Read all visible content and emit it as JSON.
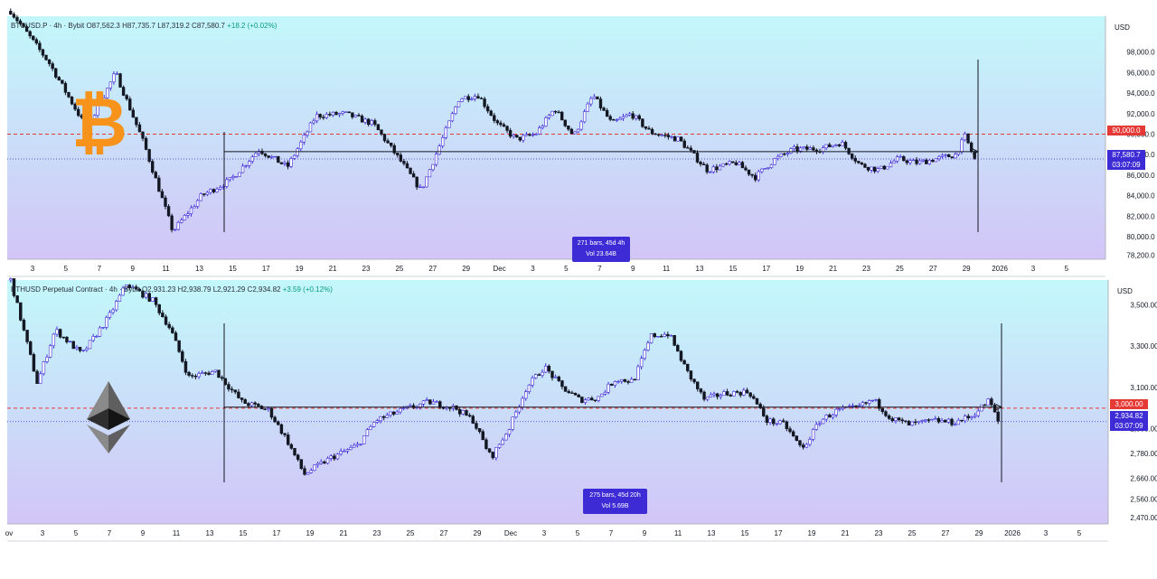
{
  "colors": {
    "up": "#3d2bd6",
    "down": "#131722",
    "ref_line": "#e53935",
    "red_tag": "#e53935",
    "blue_tag": "#3d2bd6",
    "bitcoin_orange": "#f7931a"
  },
  "chart_data": [
    {
      "type": "candlestick",
      "symbol_legend": "BTCUSD.P · 4h · Bybit",
      "ohlc": {
        "o_label": "O87,562.3",
        "h_label": "H87,735.7",
        "l_label": "L87,319.2",
        "c_label": "C87,580.7",
        "change_label": "+18.2 (+0.02%)"
      },
      "currency": "USD",
      "ylim": [
        77800,
        101500
      ],
      "y_ticks": [
        78200,
        80000,
        82000,
        84000,
        86000,
        88000,
        90000,
        92000,
        94000,
        96000,
        98000
      ],
      "y_tick_labels": [
        "78,200.0",
        "80,000.0",
        "82,000.0",
        "84,000.0",
        "86,000.0",
        "88,000.0",
        "90,000.0",
        "92,000.0",
        "94,000.0",
        "96,000.0",
        "98,000.0"
      ],
      "x_tick_labels": [
        "3",
        "5",
        "7",
        "9",
        "11",
        "13",
        "15",
        "17",
        "19",
        "21",
        "23",
        "25",
        "27",
        "29",
        "Dec",
        "3",
        "5",
        "7",
        "9",
        "11",
        "13",
        "15",
        "17",
        "19",
        "21",
        "23",
        "25",
        "27",
        "29",
        "2026",
        "3",
        "5"
      ],
      "red_level": 90000,
      "red_level_label": "90,000.0",
      "last_price": 87580.7,
      "last_price_label": "87,580.7",
      "countdown": "03:07:09",
      "range_level": 88300,
      "range_label": {
        "bars": "271 bars, 45d 4h",
        "vol": "Vol 23.64B"
      },
      "anchors": [
        [
          0,
          102000
        ],
        [
          4,
          97000
        ],
        [
          8,
          90500
        ],
        [
          11,
          96000
        ],
        [
          14,
          89000
        ],
        [
          17,
          80500
        ],
        [
          20,
          84000
        ],
        [
          23,
          85500
        ],
        [
          26,
          88500
        ],
        [
          29,
          86800
        ],
        [
          32,
          91800
        ],
        [
          35,
          92000
        ],
        [
          38,
          91000
        ],
        [
          41,
          87200
        ],
        [
          43,
          84500
        ],
        [
          45,
          89000
        ],
        [
          47,
          93500
        ],
        [
          49,
          93800
        ],
        [
          51,
          91000
        ],
        [
          53,
          89500
        ],
        [
          55,
          90000
        ],
        [
          57,
          92500
        ],
        [
          59,
          89800
        ],
        [
          61,
          93800
        ],
        [
          63,
          91000
        ],
        [
          65,
          92000
        ],
        [
          67,
          90200
        ],
        [
          70,
          89500
        ],
        [
          73,
          86500
        ],
        [
          76,
          87200
        ],
        [
          78,
          85800
        ],
        [
          80,
          87500
        ],
        [
          82,
          88500
        ],
        [
          85,
          88600
        ],
        [
          87,
          89200
        ],
        [
          89,
          87000
        ],
        [
          91,
          86500
        ],
        [
          93,
          87600
        ],
        [
          95,
          87200
        ],
        [
          97,
          87600
        ],
        [
          99,
          88000
        ],
        [
          100,
          89800
        ],
        [
          101,
          87580
        ]
      ]
    },
    {
      "type": "candlestick",
      "symbol_legend": "ETHUSD Perpetual Contract · 4h · Bybit",
      "ohlc": {
        "o_label": "O2,931.23",
        "h_label": "H2,938.79",
        "l_label": "L2,921.29",
        "c_label": "C2,934.82",
        "change_label": "+3.59 (+0.12%)"
      },
      "currency": "USD",
      "ylim": [
        2440,
        3620
      ],
      "y_ticks": [
        2470,
        2560,
        2660,
        2780,
        2900,
        3100,
        3300,
        3500
      ],
      "y_tick_labels": [
        "2,470.00",
        "2,560.00",
        "2,660.00",
        "2,780.00",
        "2,900.00",
        "3,100.00",
        "3,300.00",
        "3,500.00"
      ],
      "x_tick_labels": [
        "ov",
        "3",
        "5",
        "7",
        "9",
        "11",
        "13",
        "15",
        "17",
        "19",
        "21",
        "23",
        "25",
        "27",
        "29",
        "Dec",
        "3",
        "5",
        "7",
        "9",
        "11",
        "13",
        "15",
        "17",
        "19",
        "21",
        "23",
        "25",
        "27",
        "29",
        "2026",
        "3",
        "5"
      ],
      "red_level": 3000,
      "red_level_label": "3,000.00",
      "last_price": 2934.82,
      "last_price_label": "2,934.82",
      "countdown": "03:07:09",
      "range_level": 3005,
      "range_label": {
        "bars": "275 bars, 45d 20h",
        "vol": "Vol 5.69B"
      },
      "anchors": [
        [
          0,
          3620
        ],
        [
          3,
          3120
        ],
        [
          5,
          3380
        ],
        [
          8,
          3260
        ],
        [
          11,
          3440
        ],
        [
          13,
          3600
        ],
        [
          16,
          3520
        ],
        [
          18,
          3380
        ],
        [
          20,
          3150
        ],
        [
          23,
          3180
        ],
        [
          26,
          3030
        ],
        [
          29,
          2990
        ],
        [
          31,
          2850
        ],
        [
          33,
          2680
        ],
        [
          36,
          2760
        ],
        [
          39,
          2820
        ],
        [
          41,
          2940
        ],
        [
          44,
          2990
        ],
        [
          47,
          3030
        ],
        [
          50,
          3000
        ],
        [
          52,
          2940
        ],
        [
          54,
          2760
        ],
        [
          56,
          2900
        ],
        [
          58,
          3100
        ],
        [
          60,
          3200
        ],
        [
          62,
          3100
        ],
        [
          64,
          3040
        ],
        [
          66,
          3050
        ],
        [
          68,
          3140
        ],
        [
          70,
          3130
        ],
        [
          72,
          3350
        ],
        [
          74,
          3360
        ],
        [
          76,
          3180
        ],
        [
          78,
          3040
        ],
        [
          80,
          3070
        ],
        [
          83,
          3080
        ],
        [
          85,
          2940
        ],
        [
          87,
          2920
        ],
        [
          89,
          2800
        ],
        [
          91,
          2940
        ],
        [
          93,
          2990
        ],
        [
          95,
          3000
        ],
        [
          97,
          3040
        ],
        [
          99,
          2950
        ],
        [
          101,
          2920
        ],
        [
          104,
          2940
        ],
        [
          106,
          2930
        ],
        [
          108,
          2960
        ],
        [
          110,
          3040
        ],
        [
          111,
          2935
        ]
      ]
    }
  ]
}
